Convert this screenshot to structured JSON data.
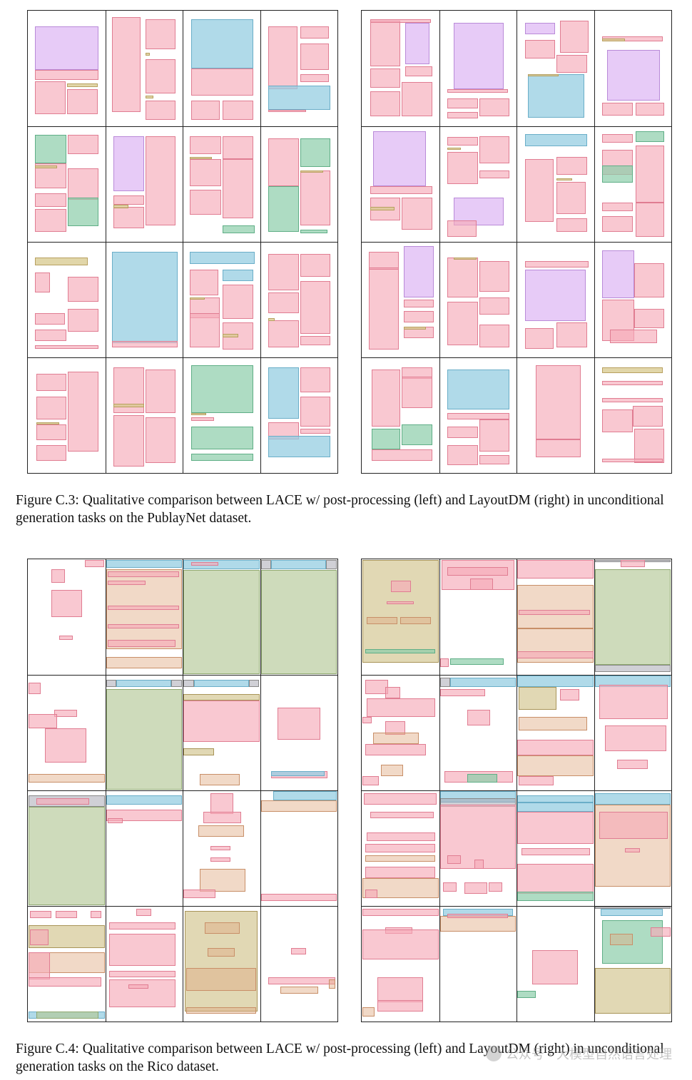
{
  "figure_c3": {
    "caption": "Figure C.3: Qualitative comparison between LACE w/ post-processing (left) and LayoutDM (right) in unconditional generation tasks on the PublayNet dataset."
  },
  "figure_c4": {
    "caption": "Figure C.4: Qualitative comparison between LACE w/ post-processing (left) and LayoutDM (right) in unconditional generation tasks on the Rico dataset."
  },
  "watermark": {
    "text": "公众号 · 大模型自然语言处理"
  },
  "colors": {
    "text": {
      "fill": "rgba(246,170,185,0.65)",
      "stroke": "#e07d92"
    },
    "title": {
      "fill": "rgba(215,200,140,0.75)",
      "stroke": "#b8a060"
    },
    "list": {
      "fill": "rgba(140,205,170,0.7)",
      "stroke": "#5fae86"
    },
    "table": {
      "fill": "rgba(150,205,225,0.75)",
      "stroke": "#6aaec8"
    },
    "figure": {
      "fill": "rgba(225,190,245,0.8)",
      "stroke": "#b98ad8"
    },
    "rico_green": {
      "fill": "rgba(180,200,150,0.65)",
      "stroke": "#8fa870"
    },
    "rico_olive": {
      "fill": "rgba(205,190,130,0.6)",
      "stroke": "#a89458"
    },
    "rico_tan": {
      "fill": "rgba(225,170,130,0.45)",
      "stroke": "#c88f68"
    },
    "rico_gray": {
      "fill": "rgba(170,170,180,0.55)",
      "stroke": "#888"
    }
  }
}
